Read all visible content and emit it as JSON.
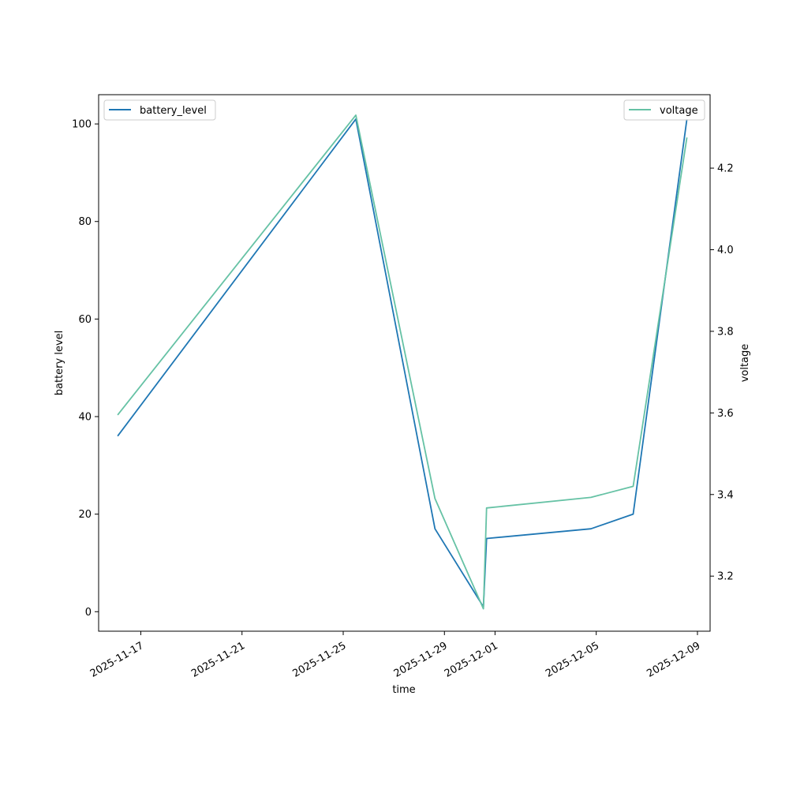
{
  "chart_data": {
    "type": "line",
    "xlabel": "time",
    "ylabel_left": "battery level",
    "ylabel_right": "voltage",
    "x_ticks": [
      "2025-11-17",
      "2025-11-21",
      "2025-11-25",
      "2025-11-29",
      "2025-12-01",
      "2025-12-05",
      "2025-12-09"
    ],
    "y_left_ticks": [
      0,
      20,
      40,
      60,
      80,
      100
    ],
    "y_right_ticks": [
      3.2,
      3.4,
      3.6,
      3.8,
      4.0,
      4.2
    ],
    "y_left_lim": [
      -4,
      106
    ],
    "y_right_lim": [
      3.065,
      4.38
    ],
    "x_lim": [
      "2025-11-15T08:00",
      "2025-12-09T12:00"
    ],
    "legend_left": {
      "label": "battery_level",
      "placement": "upper left"
    },
    "legend_right": {
      "label": "voltage",
      "placement": "upper right"
    },
    "series": [
      {
        "name": "battery_level",
        "axis": "left",
        "color": "#1f77b4",
        "points": [
          [
            "2025-11-16T02:00",
            36
          ],
          [
            "2025-11-25T12:00",
            101
          ],
          [
            "2025-11-28T15:00",
            17
          ],
          [
            "2025-11-30T13:00",
            1
          ],
          [
            "2025-11-30T16:00",
            15
          ],
          [
            "2025-12-04T19:00",
            17
          ],
          [
            "2025-12-06T11:00",
            20
          ],
          [
            "2025-12-08T14:00",
            101
          ]
        ]
      },
      {
        "name": "voltage",
        "axis": "right",
        "color": "#66c2a5",
        "points": [
          [
            "2025-11-16T02:00",
            3.595
          ],
          [
            "2025-11-25T12:00",
            4.33
          ],
          [
            "2025-11-28T15:00",
            3.39
          ],
          [
            "2025-11-30T13:00",
            3.12
          ],
          [
            "2025-11-30T16:00",
            3.367
          ],
          [
            "2025-12-04T19:00",
            3.393
          ],
          [
            "2025-12-06T11:00",
            3.42
          ],
          [
            "2025-12-08T14:00",
            4.275
          ]
        ]
      }
    ]
  }
}
